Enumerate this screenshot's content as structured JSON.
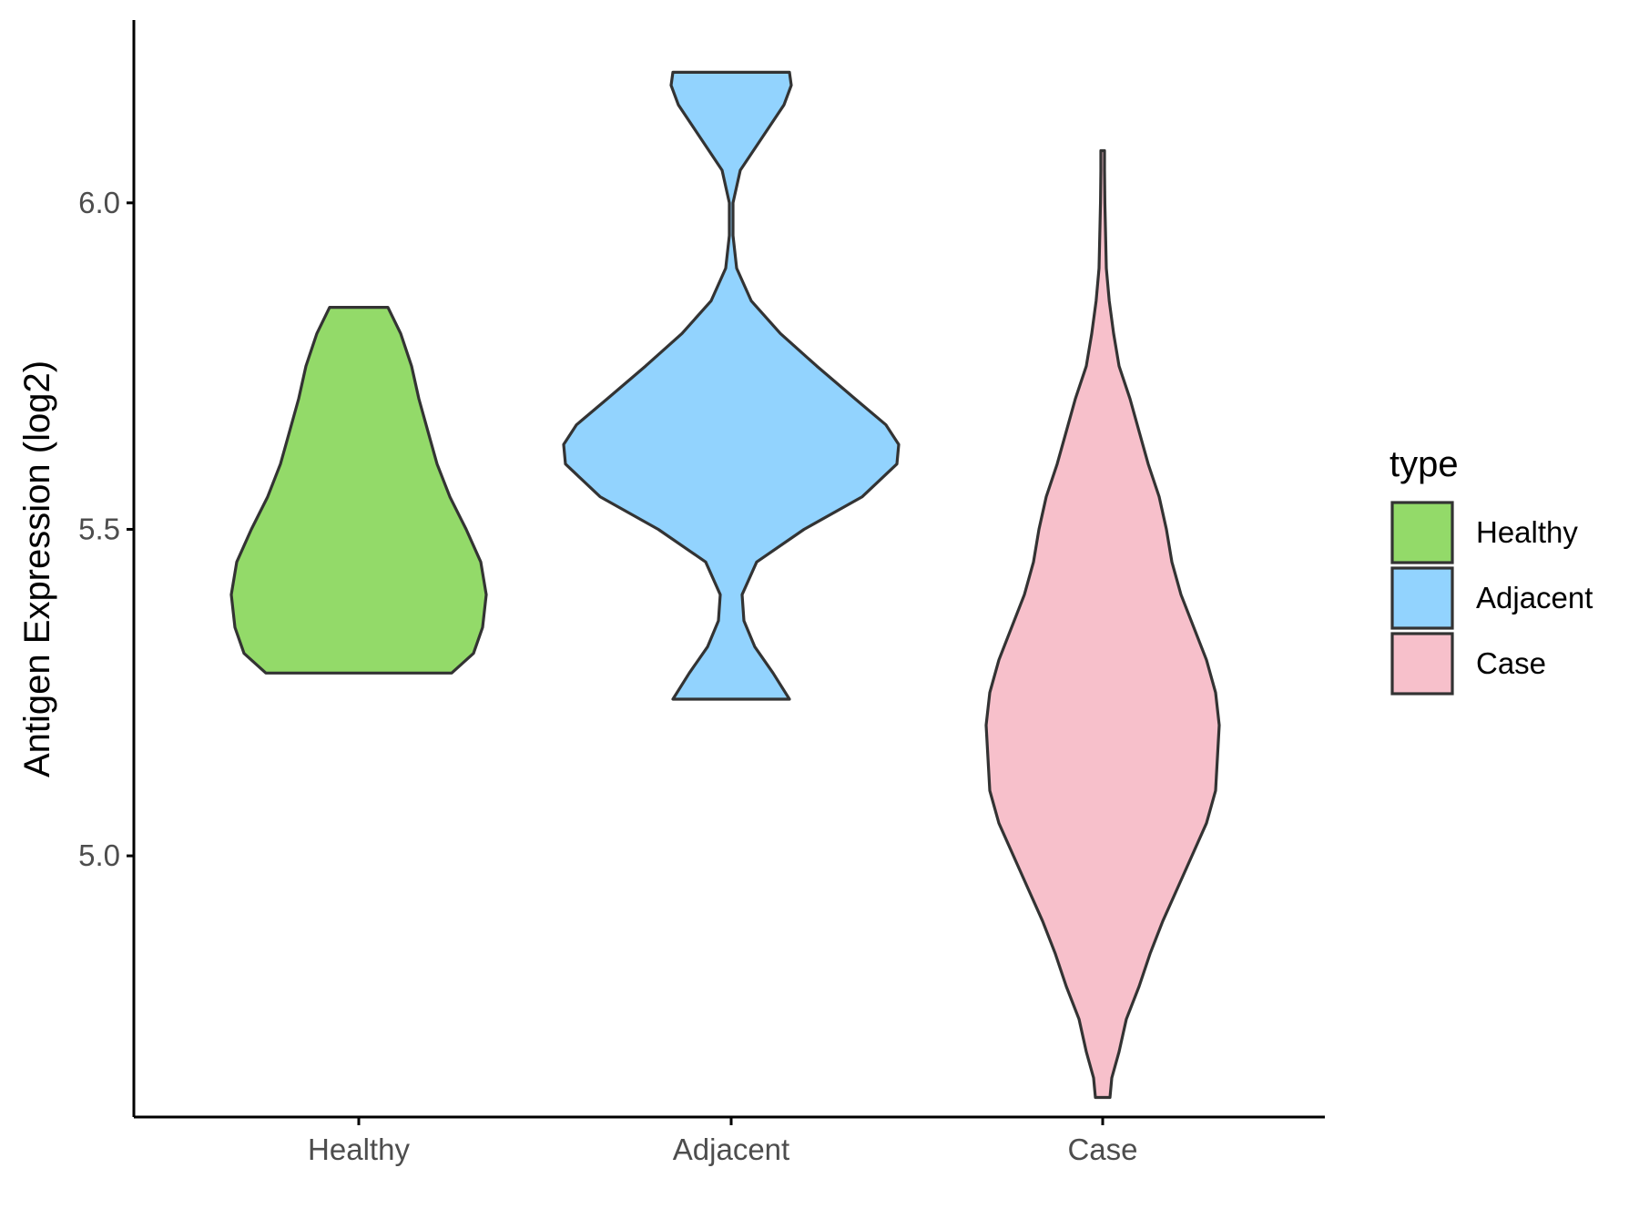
{
  "chart_data": {
    "type": "violin",
    "categories": [
      "Healthy",
      "Adjacent",
      "Case"
    ],
    "ylabel": "Antigen Expression (log2)",
    "xlabel": "",
    "ylim": [
      4.6,
      6.28
    ],
    "yticks": [
      5.0,
      5.5,
      6.0
    ],
    "ytick_labels": [
      "5.0",
      "5.5",
      "6.0"
    ],
    "legend": {
      "title": "type",
      "position": "right",
      "entries": [
        "Healthy",
        "Adjacent",
        "Case"
      ]
    },
    "grid": false,
    "outline_color": "#333333",
    "series": [
      {
        "category": "Healthy",
        "color": "#93DA69",
        "min": 5.28,
        "max": 5.84,
        "density_profile": [
          [
            5.28,
            0.255
          ],
          [
            5.31,
            0.315
          ],
          [
            5.35,
            0.34
          ],
          [
            5.4,
            0.35
          ],
          [
            5.45,
            0.335
          ],
          [
            5.5,
            0.295
          ],
          [
            5.55,
            0.25
          ],
          [
            5.6,
            0.215
          ],
          [
            5.65,
            0.19
          ],
          [
            5.7,
            0.165
          ],
          [
            5.75,
            0.145
          ],
          [
            5.8,
            0.115
          ],
          [
            5.84,
            0.08
          ]
        ]
      },
      {
        "category": "Adjacent",
        "color": "#92D3FE",
        "min": 5.24,
        "max": 6.2,
        "density_profile": [
          [
            5.24,
            0.16
          ],
          [
            5.28,
            0.115
          ],
          [
            5.32,
            0.065
          ],
          [
            5.36,
            0.035
          ],
          [
            5.4,
            0.03
          ],
          [
            5.45,
            0.07
          ],
          [
            5.5,
            0.2
          ],
          [
            5.55,
            0.36
          ],
          [
            5.6,
            0.455
          ],
          [
            5.63,
            0.46
          ],
          [
            5.66,
            0.425
          ],
          [
            5.7,
            0.34
          ],
          [
            5.75,
            0.235
          ],
          [
            5.8,
            0.135
          ],
          [
            5.85,
            0.055
          ],
          [
            5.9,
            0.015
          ],
          [
            5.95,
            0.005
          ],
          [
            6.0,
            0.005
          ],
          [
            6.05,
            0.025
          ],
          [
            6.1,
            0.085
          ],
          [
            6.15,
            0.145
          ],
          [
            6.18,
            0.165
          ],
          [
            6.2,
            0.16
          ]
        ]
      },
      {
        "category": "Case",
        "color": "#F7C0CB",
        "min": 4.63,
        "max": 6.08,
        "density_profile": [
          [
            4.63,
            0.02
          ],
          [
            4.66,
            0.025
          ],
          [
            4.7,
            0.045
          ],
          [
            4.75,
            0.065
          ],
          [
            4.8,
            0.1
          ],
          [
            4.85,
            0.13
          ],
          [
            4.9,
            0.165
          ],
          [
            4.95,
            0.205
          ],
          [
            5.0,
            0.245
          ],
          [
            5.05,
            0.285
          ],
          [
            5.1,
            0.31
          ],
          [
            5.15,
            0.315
          ],
          [
            5.2,
            0.32
          ],
          [
            5.25,
            0.31
          ],
          [
            5.3,
            0.285
          ],
          [
            5.35,
            0.25
          ],
          [
            5.4,
            0.215
          ],
          [
            5.45,
            0.19
          ],
          [
            5.5,
            0.175
          ],
          [
            5.55,
            0.155
          ],
          [
            5.6,
            0.125
          ],
          [
            5.65,
            0.1
          ],
          [
            5.7,
            0.075
          ],
          [
            5.75,
            0.045
          ],
          [
            5.8,
            0.03
          ],
          [
            5.85,
            0.018
          ],
          [
            5.9,
            0.01
          ],
          [
            5.95,
            0.008
          ],
          [
            6.0,
            0.006
          ],
          [
            6.05,
            0.005
          ],
          [
            6.08,
            0.005
          ]
        ]
      }
    ]
  }
}
